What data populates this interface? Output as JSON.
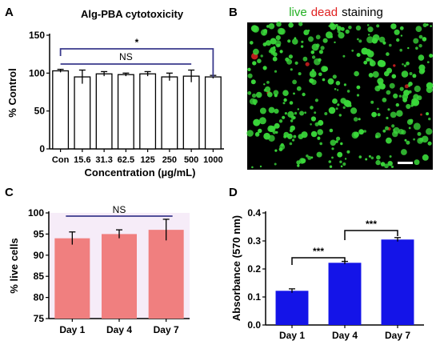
{
  "panels": {
    "a": {
      "letter": "A"
    },
    "b": {
      "letter": "B"
    },
    "c": {
      "letter": "C"
    },
    "d": {
      "letter": "D"
    }
  },
  "image_b": {
    "caption_words": [
      {
        "text": "live",
        "color": "#22b022"
      },
      {
        "text": "dead",
        "color": "#e02020"
      },
      {
        "text": "staining",
        "color": "#000000"
      }
    ],
    "background": "#000000",
    "dot_color_live": "#3ad83a",
    "dot_color_dead": "#d02020"
  },
  "chart_data": [
    {
      "id": "A",
      "type": "bar",
      "title": "Alg-PBA cytotoxicity",
      "xlabel": "Concentration (µg/mL)",
      "ylabel": "% Control",
      "categories": [
        "Con",
        "15.6",
        "31.3",
        "62.5",
        "125",
        "250",
        "500",
        "1000"
      ],
      "values": [
        103,
        95,
        99,
        98,
        99,
        95,
        96,
        95
      ],
      "errors": [
        2,
        9,
        3,
        2,
        3,
        5,
        8,
        2
      ],
      "ylim": [
        0,
        150
      ],
      "yticks": [
        0,
        50,
        100,
        150
      ],
      "bar_fill": "#ffffff",
      "bar_stroke": "#000000",
      "bracket_color": "#3a3a8c",
      "annotations": [
        {
          "label": "*",
          "from": "Con",
          "to": "1000"
        },
        {
          "label": "NS",
          "from": "Con",
          "to": "500"
        }
      ]
    },
    {
      "id": "C",
      "type": "bar",
      "ylabel": "% live cells",
      "categories": [
        "Day 1",
        "Day 4",
        "Day 7"
      ],
      "values": [
        94,
        95,
        96
      ],
      "errors": [
        1.5,
        1,
        2.5
      ],
      "ylim": [
        75,
        100
      ],
      "yticks": [
        75,
        80,
        85,
        90,
        95,
        100
      ],
      "bar_fill": "#f07f7f",
      "plot_background": "#f6ecf8",
      "bracket_color": "#3a3a8c",
      "annotations": [
        {
          "label": "NS",
          "from": "Day 1",
          "to": "Day 7"
        }
      ]
    },
    {
      "id": "D",
      "type": "bar",
      "ylabel": "Absorbance (570 nm)",
      "categories": [
        "Day 1",
        "Day 4",
        "Day 7"
      ],
      "values": [
        0.122,
        0.222,
        0.305
      ],
      "errors": [
        0.007,
        0.005,
        0.007
      ],
      "ylim": [
        0.0,
        0.4
      ],
      "yticks": [
        "0.0",
        "0.1",
        "0.2",
        "0.3",
        "0.4"
      ],
      "bar_fill": "#1414e8",
      "annotations": [
        {
          "label": "***",
          "from": "Day 1",
          "to": "Day 4"
        },
        {
          "label": "***",
          "from": "Day 4",
          "to": "Day 7"
        }
      ]
    }
  ]
}
